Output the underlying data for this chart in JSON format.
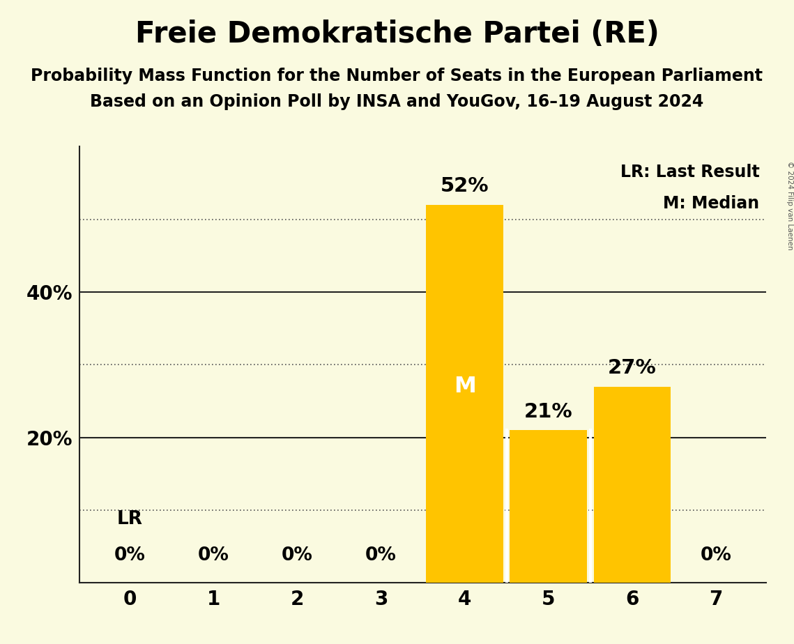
{
  "title": "Freie Demokratische Partei (RE)",
  "subtitle1": "Probability Mass Function for the Number of Seats in the European Parliament",
  "subtitle2": "Based on an Opinion Poll by INSA and YouGov, 16–19 August 2024",
  "copyright": "© 2024 Filip van Laenen",
  "seats": [
    0,
    1,
    2,
    3,
    4,
    5,
    6,
    7
  ],
  "probabilities": [
    0,
    0,
    0,
    0,
    52,
    21,
    27,
    0
  ],
  "bar_color": "#FFC400",
  "background_color": "#FAFAE0",
  "text_color": "#000000",
  "median_seat": 4,
  "last_result_seat": 0,
  "ylim_max": 60,
  "dotted_lines": [
    10,
    30,
    50
  ],
  "solid_lines": [
    20,
    40
  ],
  "legend_lr": "LR: Last Result",
  "legend_m": "M: Median",
  "median_label": "M",
  "lr_label": "LR",
  "title_fontsize": 30,
  "subtitle_fontsize": 17,
  "tick_fontsize": 20,
  "bar_label_fontsize": 21,
  "inner_label_fontsize": 23,
  "legend_fontsize": 17,
  "zero_label_fontsize": 19
}
